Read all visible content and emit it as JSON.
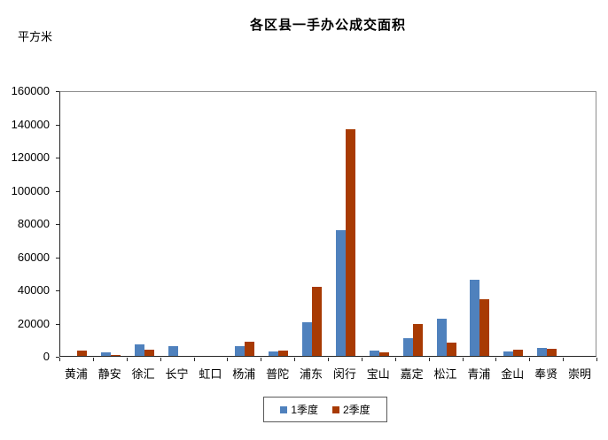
{
  "title": "各区县一手办公成交面积",
  "y_unit_label": "平方米",
  "colors": {
    "series1": "#4F81BD",
    "series2": "#A83A03",
    "axis": "#262626",
    "plot_border_gray": "#8C8C8C"
  },
  "legend": {
    "items": [
      {
        "label": "1季度",
        "color": "#4F81BD"
      },
      {
        "label": "2季度",
        "color": "#A83A03"
      }
    ]
  },
  "chart_data": {
    "type": "bar",
    "title": "各区县一手办公成交面积",
    "ylabel": "平方米",
    "xlabel": "",
    "ylim": [
      0,
      160000
    ],
    "ytick_step": 20000,
    "grid": false,
    "legend_position": "bottom",
    "categories": [
      "黄浦",
      "静安",
      "徐汇",
      "长宁",
      "虹口",
      "杨浦",
      "普陀",
      "浦东",
      "闵行",
      "宝山",
      "嘉定",
      "松江",
      "青浦",
      "金山",
      "奉贤",
      "崇明"
    ],
    "series": [
      {
        "name": "1季度",
        "color": "#4F81BD",
        "values": [
          0,
          2300,
          6800,
          5800,
          0,
          5600,
          2500,
          20000,
          75500,
          3000,
          10500,
          22500,
          46000,
          2500,
          4900,
          0
        ]
      },
      {
        "name": "2季度",
        "color": "#A83A03",
        "values": [
          3000,
          600,
          3800,
          0,
          0,
          8500,
          3300,
          41500,
          136500,
          2200,
          19000,
          8000,
          34300,
          3800,
          4100,
          0
        ]
      }
    ]
  }
}
